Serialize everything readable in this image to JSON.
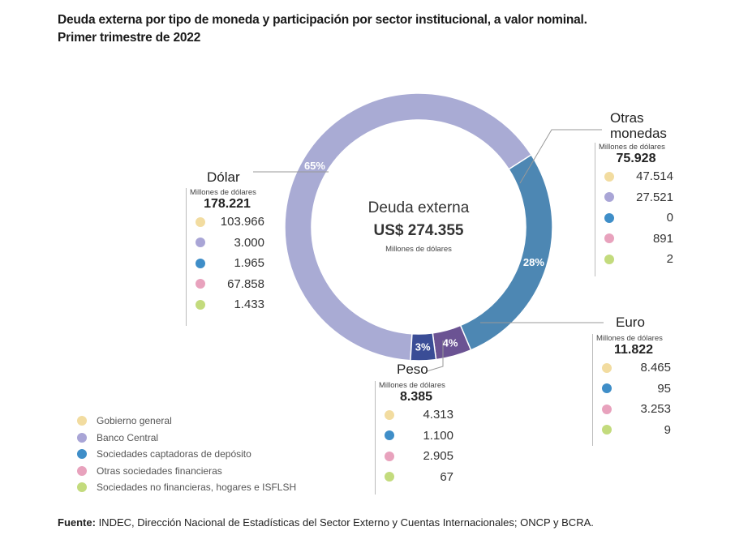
{
  "title_line1": "Deuda externa por tipo de moneda y participación por sector institucional, a valor nominal.",
  "title_line2": "Primer trimestre de 2022",
  "center": {
    "title": "Deuda externa",
    "value": "US$ 274.355",
    "units": "Millones de dólares"
  },
  "colors": {
    "dolar": "#a9abd4",
    "otras": "#4d87b3",
    "euro": "#6b5393",
    "peso": "#3a4d96",
    "gobierno": "#f2dca0",
    "banco_central": "#a9a5d6",
    "captadoras": "#3f8ec8",
    "otras_financieras": "#e8a2bd",
    "no_financieras": "#c3db7d"
  },
  "chart_data": {
    "type": "pie",
    "donut": true,
    "total": 274355,
    "units": "Millones de dólares",
    "slices": [
      {
        "name": "Dólar",
        "value": 178221,
        "label": "65%"
      },
      {
        "name": "Otras monedas",
        "value": 75928,
        "label": "28%"
      },
      {
        "name": "Euro",
        "value": 11822,
        "label": "4%"
      },
      {
        "name": "Peso",
        "value": 8385,
        "label": "3%"
      }
    ]
  },
  "blocks": {
    "dolar": {
      "name": "Dólar",
      "unit": "Millones de dólares",
      "total": "178.221",
      "rows": [
        {
          "color": "gobierno",
          "value": "103.966"
        },
        {
          "color": "banco_central",
          "value": "3.000"
        },
        {
          "color": "captadoras",
          "value": "1.965"
        },
        {
          "color": "otras_financieras",
          "value": "67.858"
        },
        {
          "color": "no_financieras",
          "value": "1.433"
        }
      ]
    },
    "otras": {
      "name": "Otras\nmonedas",
      "unit": "Millones de dólares",
      "total": "75.928",
      "rows": [
        {
          "color": "gobierno",
          "value": "47.514"
        },
        {
          "color": "banco_central",
          "value": "27.521"
        },
        {
          "color": "captadoras",
          "value": "0"
        },
        {
          "color": "otras_financieras",
          "value": "891"
        },
        {
          "color": "no_financieras",
          "value": "2"
        }
      ]
    },
    "euro": {
      "name": "Euro",
      "unit": "Millones de dólares",
      "total": "11.822",
      "rows": [
        {
          "color": "gobierno",
          "value": "8.465"
        },
        {
          "color": "captadoras",
          "value": "95"
        },
        {
          "color": "otras_financieras",
          "value": "3.253"
        },
        {
          "color": "no_financieras",
          "value": "9"
        }
      ]
    },
    "peso": {
      "name": "Peso",
      "unit": "Millones de dólares",
      "total": "8.385",
      "rows": [
        {
          "color": "gobierno",
          "value": "4.313"
        },
        {
          "color": "captadoras",
          "value": "1.100"
        },
        {
          "color": "otras_financieras",
          "value": "2.905"
        },
        {
          "color": "no_financieras",
          "value": "67"
        }
      ]
    }
  },
  "legend": [
    {
      "color": "gobierno",
      "label": "Gobierno general"
    },
    {
      "color": "banco_central",
      "label": "Banco Central"
    },
    {
      "color": "captadoras",
      "label": "Sociedades captadoras de depósito"
    },
    {
      "color": "otras_financieras",
      "label": "Otras sociedades financieras"
    },
    {
      "color": "no_financieras",
      "label": "Sociedades no financieras, hogares e ISFLSH"
    }
  ],
  "source": {
    "prefix": "Fuente:",
    "text": " INDEC, Dirección Nacional de Estadísticas del Sector Externo y Cuentas Internacionales; ONCP y BCRA."
  }
}
